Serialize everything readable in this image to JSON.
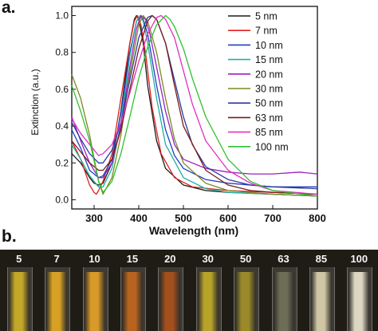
{
  "panel_a_label": "a.",
  "panel_b_label": "b.",
  "chart_data": {
    "type": "line",
    "xlabel": "Wavelength (nm)",
    "ylabel": "Extinction (a.u.)",
    "xlim": [
      250,
      800
    ],
    "ylim": [
      -0.05,
      1.05
    ],
    "xticks": [
      300,
      400,
      500,
      600,
      700,
      800
    ],
    "yticks": [
      0.0,
      0.2,
      0.4,
      0.6,
      0.8,
      1.0
    ],
    "grid": false,
    "legend_position": "top-right",
    "series": [
      {
        "name": "5 nm",
        "color": "#1a1a1a",
        "x": [
          250,
          270,
          290,
          300,
          310,
          320,
          340,
          360,
          380,
          390,
          395,
          400,
          410,
          420,
          440,
          460,
          500,
          550,
          600,
          700,
          800
        ],
        "y": [
          0.25,
          0.2,
          0.12,
          0.09,
          0.08,
          0.09,
          0.2,
          0.48,
          0.85,
          0.98,
          1.0,
          0.98,
          0.85,
          0.62,
          0.32,
          0.17,
          0.08,
          0.05,
          0.04,
          0.03,
          0.02
        ]
      },
      {
        "name": "7 nm",
        "color": "#e02020",
        "x": [
          250,
          270,
          290,
          300,
          305,
          310,
          320,
          340,
          360,
          380,
          390,
          397,
          405,
          415,
          430,
          450,
          480,
          520,
          600,
          700,
          800
        ],
        "y": [
          0.32,
          0.22,
          0.08,
          0.04,
          0.03,
          0.05,
          0.1,
          0.25,
          0.55,
          0.85,
          0.97,
          1.0,
          0.95,
          0.8,
          0.5,
          0.25,
          0.12,
          0.07,
          0.05,
          0.04,
          0.03
        ]
      },
      {
        "name": "10 nm",
        "color": "#2040c0",
        "x": [
          250,
          270,
          290,
          310,
          320,
          340,
          360,
          380,
          395,
          405,
          410,
          420,
          440,
          460,
          480,
          500,
          550,
          600,
          700,
          800
        ],
        "y": [
          0.38,
          0.28,
          0.16,
          0.12,
          0.13,
          0.22,
          0.47,
          0.8,
          0.97,
          1.0,
          0.98,
          0.9,
          0.62,
          0.38,
          0.24,
          0.17,
          0.11,
          0.09,
          0.07,
          0.07
        ]
      },
      {
        "name": "15 nm",
        "color": "#20b0a0",
        "x": [
          250,
          270,
          290,
          310,
          320,
          340,
          360,
          380,
          395,
          403,
          410,
          420,
          440,
          460,
          500,
          550,
          600,
          700,
          800
        ],
        "y": [
          0.3,
          0.22,
          0.13,
          0.07,
          0.07,
          0.17,
          0.42,
          0.78,
          0.97,
          1.0,
          0.97,
          0.85,
          0.55,
          0.3,
          0.12,
          0.06,
          0.04,
          0.03,
          0.02
        ]
      },
      {
        "name": "20 nm",
        "color": "#9a20c0",
        "x": [
          250,
          270,
          290,
          310,
          320,
          340,
          360,
          380,
          395,
          405,
          415,
          425,
          440,
          460,
          480,
          500,
          550,
          600,
          650,
          700,
          760,
          800
        ],
        "y": [
          0.45,
          0.32,
          0.2,
          0.12,
          0.12,
          0.2,
          0.4,
          0.72,
          0.93,
          1.0,
          0.98,
          0.9,
          0.72,
          0.48,
          0.3,
          0.22,
          0.17,
          0.15,
          0.14,
          0.14,
          0.15,
          0.14
        ]
      },
      {
        "name": "30 nm",
        "color": "#7a8a20",
        "x": [
          250,
          270,
          290,
          310,
          320,
          340,
          360,
          380,
          400,
          410,
          420,
          440,
          460,
          480,
          500,
          550,
          600,
          700,
          800
        ],
        "y": [
          0.68,
          0.55,
          0.35,
          0.1,
          0.03,
          0.12,
          0.35,
          0.68,
          0.95,
          1.0,
          0.97,
          0.8,
          0.55,
          0.33,
          0.2,
          0.09,
          0.05,
          0.03,
          0.02
        ]
      },
      {
        "name": "50 nm",
        "color": "#2a3aa0",
        "x": [
          250,
          270,
          290,
          310,
          320,
          340,
          360,
          380,
          400,
          420,
          430,
          440,
          460,
          480,
          500,
          520,
          550,
          600,
          650,
          700,
          800
        ],
        "y": [
          0.42,
          0.33,
          0.25,
          0.2,
          0.2,
          0.27,
          0.42,
          0.65,
          0.88,
          0.99,
          1.0,
          0.98,
          0.85,
          0.65,
          0.45,
          0.3,
          0.18,
          0.11,
          0.08,
          0.07,
          0.06
        ]
      },
      {
        "name": "63 nm",
        "color": "#7a1a1a",
        "x": [
          250,
          270,
          290,
          310,
          320,
          340,
          360,
          380,
          400,
          420,
          430,
          440,
          460,
          480,
          500,
          550,
          600,
          650,
          700,
          800
        ],
        "y": [
          0.32,
          0.26,
          0.2,
          0.16,
          0.16,
          0.22,
          0.38,
          0.6,
          0.82,
          0.97,
          1.0,
          0.98,
          0.85,
          0.62,
          0.4,
          0.16,
          0.08,
          0.05,
          0.04,
          0.03
        ]
      },
      {
        "name": "85 nm",
        "color": "#e030c0",
        "x": [
          250,
          270,
          290,
          310,
          320,
          340,
          360,
          380,
          400,
          420,
          440,
          450,
          460,
          480,
          500,
          520,
          550,
          600,
          650,
          700,
          800
        ],
        "y": [
          0.44,
          0.36,
          0.3,
          0.24,
          0.25,
          0.3,
          0.42,
          0.58,
          0.75,
          0.9,
          0.99,
          1.0,
          0.98,
          0.88,
          0.7,
          0.52,
          0.32,
          0.16,
          0.09,
          0.05,
          0.03
        ]
      },
      {
        "name": "100 nm",
        "color": "#30c030",
        "x": [
          250,
          270,
          290,
          310,
          320,
          340,
          360,
          380,
          400,
          420,
          440,
          460,
          470,
          480,
          500,
          520,
          550,
          600,
          650,
          700,
          800
        ],
        "y": [
          0.62,
          0.48,
          0.32,
          0.1,
          0.04,
          0.1,
          0.25,
          0.45,
          0.66,
          0.83,
          0.95,
          1.0,
          0.98,
          0.94,
          0.82,
          0.66,
          0.45,
          0.22,
          0.1,
          0.05,
          0.02
        ]
      }
    ]
  },
  "vials": [
    {
      "label": "5",
      "color": "#c4a82a"
    },
    {
      "label": "7",
      "color": "#d7a126"
    },
    {
      "label": "10",
      "color": "#d89a28"
    },
    {
      "label": "15",
      "color": "#b86420"
    },
    {
      "label": "20",
      "color": "#a4501e"
    },
    {
      "label": "30",
      "color": "#b7a22a"
    },
    {
      "label": "50",
      "color": "#9b8a2a"
    },
    {
      "label": "63",
      "color": "#6c6e58"
    },
    {
      "label": "85",
      "color": "#cfc6a6"
    },
    {
      "label": "100",
      "color": "#dcd6c2"
    }
  ]
}
